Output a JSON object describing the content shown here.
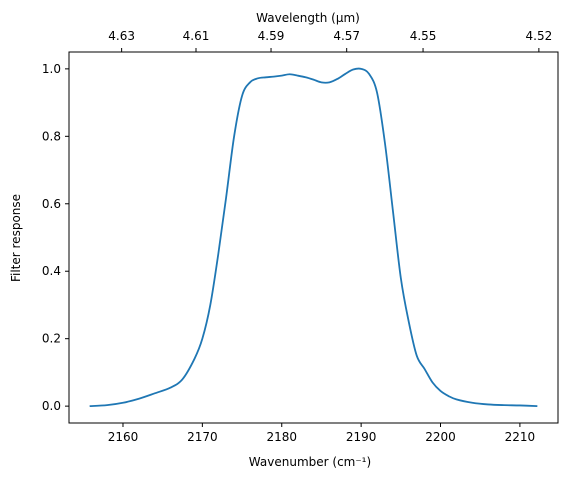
{
  "chart_data": {
    "type": "line",
    "xlabel": "Wavenumber (cm⁻¹)",
    "ylabel": "Filter response",
    "top_xlabel": "Wavelength (μm)",
    "xlim": [
      2153.2,
      2214.8
    ],
    "ylim": [
      -0.05,
      1.05
    ],
    "x_ticks": [
      2160,
      2170,
      2180,
      2190,
      2200,
      2210
    ],
    "x_tick_labels": [
      "2160",
      "2170",
      "2180",
      "2190",
      "2200",
      "2210"
    ],
    "y_ticks": [
      0.0,
      0.2,
      0.4,
      0.6,
      0.8,
      1.0
    ],
    "y_tick_labels": [
      "0.0",
      "0.2",
      "0.4",
      "0.6",
      "0.8",
      "1.0"
    ],
    "top_ticks": [
      {
        "label": "4.63",
        "wavenumber": 2159.83
      },
      {
        "label": "4.61",
        "wavenumber": 2169.2
      },
      {
        "label": "4.59",
        "wavenumber": 2178.65
      },
      {
        "label": "4.57",
        "wavenumber": 2188.18
      },
      {
        "label": "4.55",
        "wavenumber": 2197.8
      },
      {
        "label": "4.52",
        "wavenumber": 2212.39
      }
    ],
    "grid": false,
    "series": [
      {
        "color": "#1f77b4",
        "x": [
          2155.8,
          2158,
          2160,
          2162,
          2164,
          2166,
          2167.5,
          2169,
          2170,
          2171,
          2172,
          2173,
          2174,
          2175,
          2176,
          2177,
          2178,
          2179,
          2180,
          2181,
          2182,
          2183,
          2184,
          2185,
          2186,
          2187,
          2188,
          2189,
          2190,
          2191,
          2192,
          2193,
          2194,
          2195,
          2196,
          2197,
          2198,
          2199,
          2200,
          2201,
          2202,
          2204,
          2206,
          2208,
          2210,
          2212.2
        ],
        "y": [
          0.0,
          0.003,
          0.01,
          0.022,
          0.038,
          0.055,
          0.08,
          0.14,
          0.2,
          0.3,
          0.45,
          0.62,
          0.8,
          0.92,
          0.96,
          0.972,
          0.975,
          0.977,
          0.98,
          0.984,
          0.98,
          0.975,
          0.968,
          0.96,
          0.96,
          0.97,
          0.985,
          0.998,
          1.0,
          0.985,
          0.93,
          0.78,
          0.58,
          0.38,
          0.25,
          0.15,
          0.11,
          0.07,
          0.045,
          0.03,
          0.02,
          0.01,
          0.005,
          0.003,
          0.002,
          0.0
        ]
      }
    ]
  }
}
